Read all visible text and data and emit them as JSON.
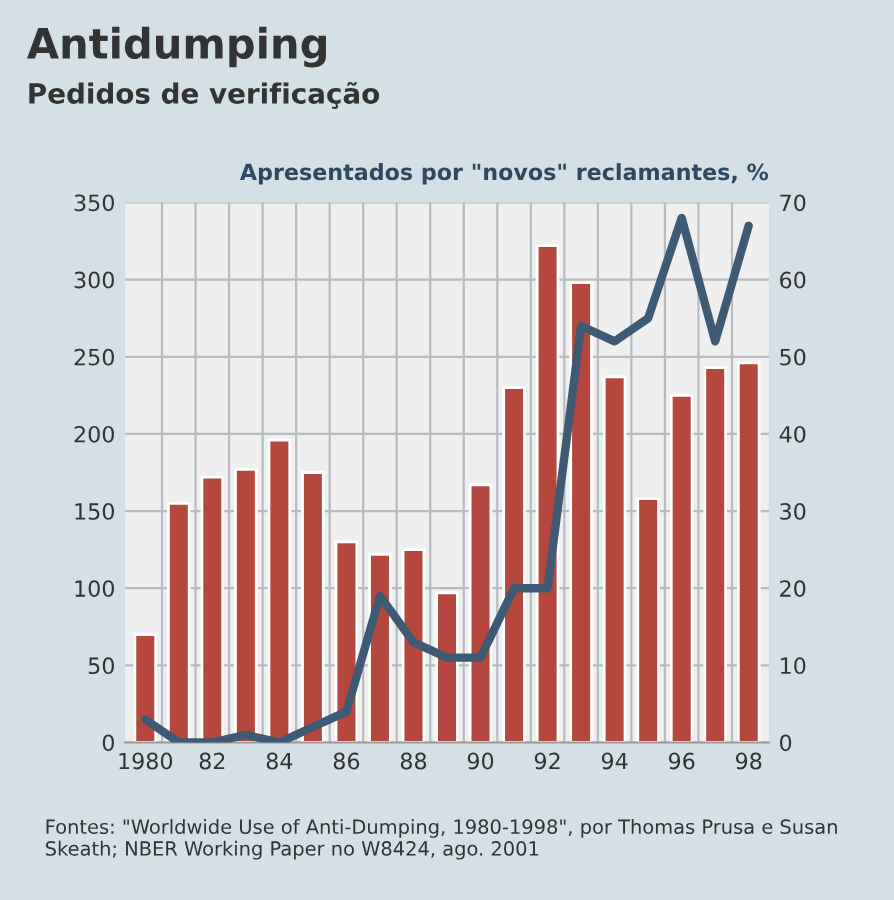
{
  "chart_data": {
    "type": "bar",
    "title": "Antidumping",
    "subtitle": "Pedidos de verificação",
    "y2label": "Apresentados por \"novos\" reclamantes, %",
    "categories": [
      "1980",
      null,
      "82",
      null,
      "84",
      null,
      "86",
      null,
      "88",
      null,
      "90",
      null,
      "92",
      null,
      "94",
      null,
      "96",
      null,
      "98"
    ],
    "series": [
      {
        "color": "#b5473e",
        "values": [
          70,
          155,
          172,
          177,
          196,
          175,
          130,
          122,
          125,
          97,
          167,
          230,
          322,
          298,
          237,
          158,
          225,
          243,
          246
        ]
      },
      {
        "type": "line",
        "axis": "y2",
        "color": "#3f5a73",
        "values": [
          3,
          0,
          0,
          1,
          0,
          2,
          4,
          19,
          13,
          11,
          11,
          20,
          20,
          54,
          52,
          55,
          68,
          52,
          67
        ]
      }
    ],
    "ylim": [
      0,
      350
    ],
    "yticks": [
      0,
      50,
      100,
      150,
      200,
      250,
      300,
      350
    ],
    "y2lim": [
      0,
      70
    ],
    "y2ticks": [
      0,
      10,
      20,
      30,
      40,
      50,
      60,
      70
    ],
    "grid": true,
    "annotations": [
      "Fontes: \"Worldwide Use of Anti-Dumping, 1980-1998\", por Thomas Prusa e Susan Skeath; NBER Working Paper no W8424, ago. 2001"
    ]
  }
}
